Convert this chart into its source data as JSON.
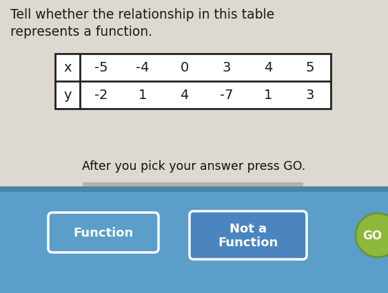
{
  "title_line1": "Tell whether the relationship in this table",
  "title_line2": "represents a function.",
  "x_label": "x",
  "y_label": "y",
  "x_values": [
    "-5",
    "-4",
    "0",
    "3",
    "4",
    "5"
  ],
  "y_values": [
    "-2",
    "1",
    "4",
    "-7",
    "1",
    "3"
  ],
  "prompt": "After you pick your answer press GO.",
  "btn1_text": "Function",
  "btn2_line1": "Not a",
  "btn2_line2": "Function",
  "btn3_text": "GO",
  "bg_top": "#ddd8d0",
  "bg_bottom": "#5b9ec9",
  "bg_bottom_dark": "#4a85aa",
  "btn1_fill": "#5b9ec9",
  "btn1_edge": "#ffffff",
  "btn2_fill": "#4a85c0",
  "btn2_edge": "#ffffff",
  "btn3_fill": "#8db83a",
  "btn3_edge": "#6a9430",
  "table_bg": "#ffffff",
  "text_color": "#1a1a1a",
  "prompt_color": "#111111",
  "btn_text_color": "#ffffff",
  "strip_color": "#8ab8d0"
}
